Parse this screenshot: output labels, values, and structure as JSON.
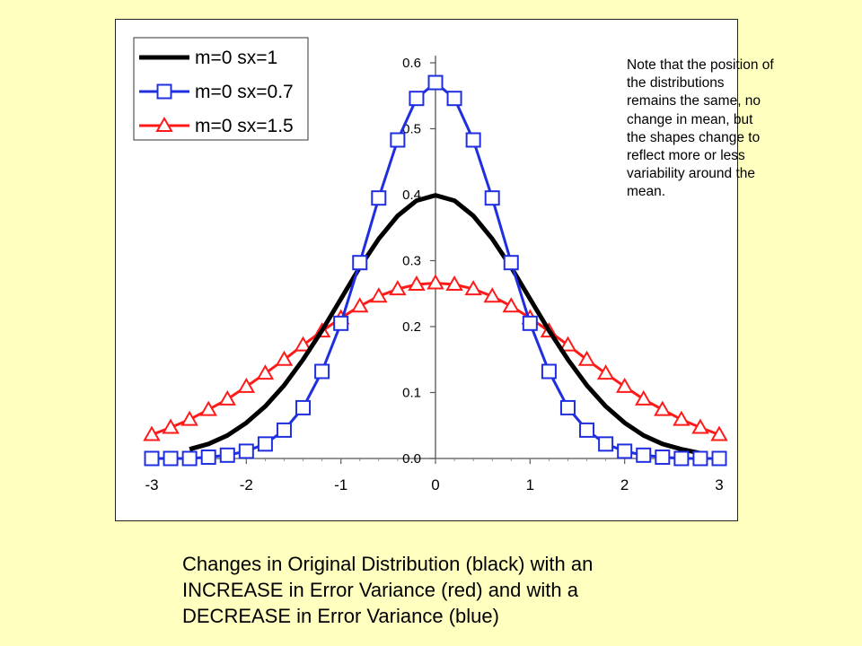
{
  "note": "Note that the position of\nthe distributions\nremains the same, no\nchange in mean, but\nthe shapes change to\nreflect more or less\nvariability around the\nmean.",
  "caption": "Changes in Original Distribution (black) with an\nINCREASE in Error Variance  (red) and with a\nDECREASE in Error Variance (blue)",
  "chart_data": {
    "type": "line",
    "title": "",
    "xlabel": "",
    "ylabel": "",
    "xlim": [
      -3,
      3
    ],
    "ylim": [
      0,
      0.6
    ],
    "xticks": [
      "-3",
      "-2",
      "-1",
      "0",
      "1",
      "2",
      "3"
    ],
    "yticks": [
      "0.0",
      "0.1",
      "0.2",
      "0.3",
      "0.4",
      "0.5",
      "0.6"
    ],
    "grid": false,
    "legend_position": "top-left",
    "series": [
      {
        "name": "m=0 sx=1",
        "color": "#000000",
        "marker": "none",
        "x": [
          -2.6,
          -2.4,
          -2.2,
          -2.0,
          -1.8,
          -1.6,
          -1.4,
          -1.2,
          -1.0,
          -0.8,
          -0.6,
          -0.4,
          -0.2,
          0.0,
          0.2,
          0.4,
          0.6,
          0.8,
          1.0,
          1.2,
          1.4,
          1.6,
          1.8,
          2.0,
          2.2,
          2.4,
          2.6,
          2.8
        ],
        "y": [
          0.014,
          0.022,
          0.035,
          0.054,
          0.079,
          0.111,
          0.15,
          0.194,
          0.242,
          0.29,
          0.333,
          0.368,
          0.391,
          0.399,
          0.391,
          0.368,
          0.333,
          0.29,
          0.242,
          0.194,
          0.15,
          0.111,
          0.079,
          0.054,
          0.035,
          0.022,
          0.014,
          0.008
        ]
      },
      {
        "name": "m=0 sx=0.7",
        "color": "#1F2FE0",
        "marker": "square",
        "x": [
          -3.0,
          -2.8,
          -2.6,
          -2.4,
          -2.2,
          -2.0,
          -1.8,
          -1.6,
          -1.4,
          -1.2,
          -1.0,
          -0.8,
          -0.6,
          -0.4,
          -0.2,
          0.0,
          0.2,
          0.4,
          0.6,
          0.8,
          1.0,
          1.2,
          1.4,
          1.6,
          1.8,
          2.0,
          2.2,
          2.4,
          2.6,
          2.8,
          3.0
        ],
        "y": [
          0.0,
          0.0,
          0.0,
          0.002,
          0.005,
          0.011,
          0.022,
          0.043,
          0.077,
          0.132,
          0.205,
          0.297,
          0.395,
          0.483,
          0.546,
          0.57,
          0.546,
          0.483,
          0.395,
          0.297,
          0.205,
          0.132,
          0.077,
          0.043,
          0.022,
          0.011,
          0.005,
          0.002,
          0.0,
          0.0,
          0.0
        ]
      },
      {
        "name": "m=0 sx=1.5",
        "color": "#FF1A1A",
        "marker": "triangle",
        "x": [
          -3.0,
          -2.8,
          -2.6,
          -2.4,
          -2.2,
          -2.0,
          -1.8,
          -1.6,
          -1.4,
          -1.2,
          -1.0,
          -0.8,
          -0.6,
          -0.4,
          -0.2,
          0.0,
          0.2,
          0.4,
          0.6,
          0.8,
          1.0,
          1.2,
          1.4,
          1.6,
          1.8,
          2.0,
          2.2,
          2.4,
          2.6,
          2.8,
          3.0
        ],
        "y": [
          0.036,
          0.047,
          0.059,
          0.074,
          0.09,
          0.109,
          0.129,
          0.15,
          0.172,
          0.193,
          0.213,
          0.231,
          0.246,
          0.257,
          0.264,
          0.266,
          0.264,
          0.257,
          0.246,
          0.231,
          0.213,
          0.193,
          0.172,
          0.15,
          0.129,
          0.109,
          0.09,
          0.074,
          0.059,
          0.047,
          0.036
        ]
      }
    ]
  }
}
